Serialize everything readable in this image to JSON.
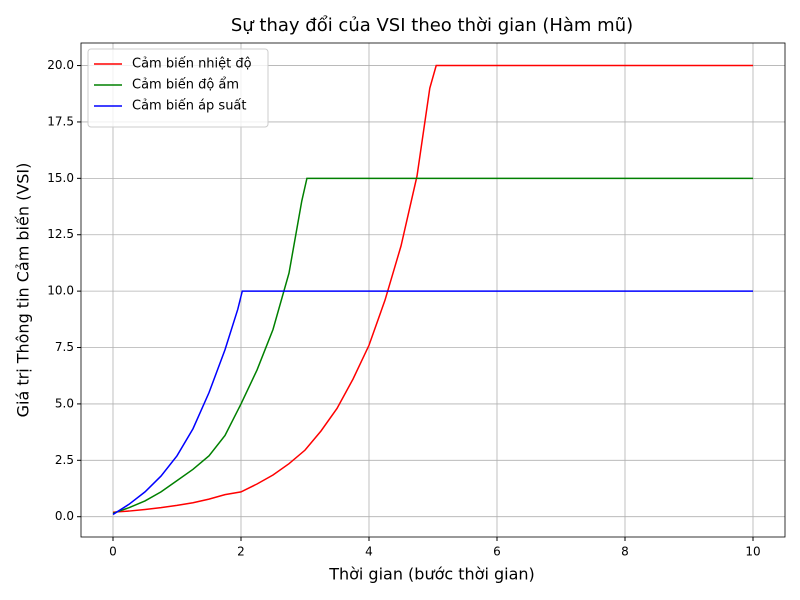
{
  "chart_data": {
    "type": "line",
    "title": "Sự thay đổi của VSI theo thời gian (Hàm mũ)",
    "x_label": "Thời gian (bước thời gian)",
    "y_label": "Giá trị Thông tin Cảm biến (VSI)",
    "xlim": [
      -0.5,
      10.5
    ],
    "ylim": [
      -0.9,
      21
    ],
    "xticks": [
      0,
      2,
      4,
      6,
      8,
      10
    ],
    "yticks": [
      {
        "value": 0,
        "label": "0.0"
      },
      {
        "value": 2.5,
        "label": "2.5"
      },
      {
        "value": 5,
        "label": "5.0"
      },
      {
        "value": 7.5,
        "label": "7.5"
      },
      {
        "value": 10,
        "label": "10.0"
      },
      {
        "value": 12.5,
        "label": "12.5"
      },
      {
        "value": 15,
        "label": "15.0"
      },
      {
        "value": 17.5,
        "label": "17.5"
      },
      {
        "value": 20,
        "label": "20.0"
      }
    ],
    "grid": true,
    "legend": "upper-left",
    "series": [
      {
        "name": "Cảm biến nhiệt độ",
        "color": "#ff0000",
        "x": [
          0,
          0.25,
          0.5,
          0.75,
          1,
          1.25,
          1.5,
          1.75,
          2,
          2.25,
          2.5,
          2.75,
          3,
          3.25,
          3.5,
          3.75,
          4,
          4.25,
          4.5,
          4.75,
          4.95,
          5.05,
          10
        ],
        "values": [
          0.2,
          0.25,
          0.32,
          0.4,
          0.5,
          0.62,
          0.78,
          0.98,
          1.1,
          1.45,
          1.85,
          2.35,
          2.95,
          3.8,
          4.8,
          6.1,
          7.6,
          9.6,
          12.0,
          15.1,
          19.0,
          20,
          20
        ]
      },
      {
        "name": "Cảm biến độ ẩm",
        "color": "#008000",
        "x": [
          0,
          0.25,
          0.5,
          0.75,
          1,
          1.25,
          1.5,
          1.75,
          2,
          2.25,
          2.5,
          2.75,
          2.95,
          3.03,
          10
        ],
        "values": [
          0.15,
          0.4,
          0.7,
          1.1,
          1.6,
          2.1,
          2.7,
          3.6,
          5.0,
          6.5,
          8.3,
          10.8,
          14.0,
          15,
          15
        ]
      },
      {
        "name": "Cảm biến áp suất",
        "color": "#0000ff",
        "x": [
          0,
          0.25,
          0.5,
          0.75,
          1,
          1.25,
          1.5,
          1.75,
          1.95,
          2.02,
          10
        ],
        "values": [
          0.1,
          0.55,
          1.1,
          1.8,
          2.7,
          3.9,
          5.5,
          7.4,
          9.2,
          10,
          10
        ]
      }
    ]
  }
}
